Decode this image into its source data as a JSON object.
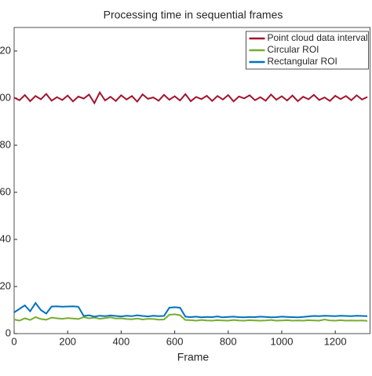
{
  "chart_data": {
    "type": "line",
    "title": "Processing time in sequential frames",
    "x_label": "Frame",
    "x": [
      0,
      20,
      40,
      60,
      80,
      100,
      120,
      140,
      160,
      180,
      200,
      220,
      240,
      260,
      280,
      300,
      320,
      340,
      360,
      380,
      400,
      420,
      440,
      460,
      480,
      500,
      520,
      540,
      560,
      580,
      600,
      620,
      640,
      660,
      680,
      700,
      720,
      740,
      760,
      780,
      800,
      820,
      840,
      860,
      880,
      900,
      920,
      940,
      960,
      980,
      1000,
      1020,
      1040,
      1060,
      1080,
      1100,
      1120,
      1140,
      1160,
      1180,
      1200,
      1220,
      1240,
      1260,
      1280,
      1300,
      1320
    ],
    "series": [
      {
        "name": "Point cloud data interval",
        "color": "#a2142f",
        "values": [
          100.2,
          99.1,
          101.3,
          98.7,
          100.9,
          99.5,
          101.8,
          98.9,
          100.4,
          99.2,
          101.1,
          98.6,
          100.7,
          99.8,
          101.5,
          97.9,
          102.4,
          99.0,
          100.6,
          98.8,
          101.2,
          99.4,
          100.9,
          98.5,
          101.6,
          99.7,
          100.3,
          98.9,
          101.4,
          99.3,
          100.8,
          99.0,
          101.7,
          98.7,
          100.5,
          99.6,
          101.0,
          98.8,
          100.9,
          99.4,
          101.3,
          98.6,
          100.7,
          99.9,
          101.2,
          99.1,
          100.4,
          98.9,
          101.5,
          99.3,
          100.8,
          99.0,
          101.1,
          98.7,
          100.6,
          99.5,
          101.4,
          99.2,
          100.3,
          98.8,
          101.0,
          99.6,
          100.9,
          99.1,
          101.2,
          99.4,
          100.5
        ]
      },
      {
        "name": "Circular ROI",
        "color": "#77ac30",
        "values": [
          6.0,
          5.5,
          6.5,
          5.8,
          7.0,
          6.2,
          5.9,
          6.8,
          6.5,
          6.3,
          6.6,
          6.4,
          6.2,
          7.0,
          6.5,
          6.8,
          6.3,
          6.6,
          6.9,
          6.4,
          6.5,
          6.2,
          6.1,
          6.4,
          6.0,
          6.3,
          6.2,
          5.9,
          6.0,
          8.0,
          8.2,
          7.8,
          5.8,
          5.7,
          5.5,
          5.8,
          5.6,
          5.5,
          5.7,
          5.6,
          5.5,
          5.8,
          5.6,
          5.5,
          5.7,
          5.6,
          5.5,
          5.6,
          5.8,
          5.5,
          5.6,
          5.7,
          5.5,
          5.6,
          5.5,
          5.7,
          5.6,
          5.5,
          6.0,
          5.6,
          5.5,
          5.7,
          5.5,
          5.6,
          5.5,
          5.6,
          5.4
        ]
      },
      {
        "name": "Rectangular ROI",
        "color": "#0072bd",
        "values": [
          9.0,
          10.5,
          12.0,
          9.5,
          13.0,
          10.0,
          8.5,
          11.5,
          11.6,
          11.4,
          11.5,
          11.6,
          11.4,
          7.5,
          7.8,
          7.2,
          7.6,
          7.4,
          7.7,
          7.5,
          7.3,
          7.6,
          7.4,
          7.8,
          7.5,
          7.3,
          7.6,
          7.4,
          7.5,
          11.0,
          11.2,
          11.0,
          7.2,
          7.0,
          7.2,
          6.9,
          7.1,
          7.0,
          7.3,
          6.9,
          7.1,
          7.2,
          7.0,
          6.9,
          7.1,
          7.0,
          7.2,
          7.1,
          6.9,
          7.0,
          7.2,
          7.1,
          7.0,
          6.9,
          7.1,
          7.3,
          7.5,
          7.4,
          7.6,
          7.5,
          7.4,
          7.6,
          7.5,
          7.4,
          7.6,
          7.5,
          7.4
        ]
      }
    ],
    "xlim": [
      0,
      1330
    ],
    "xticks": [
      0,
      200,
      400,
      600,
      800,
      1000,
      1200
    ],
    "ylim": [
      0,
      130
    ],
    "yticks": [
      0,
      20,
      40,
      60,
      80,
      100,
      120
    ],
    "legend": "upper right"
  }
}
